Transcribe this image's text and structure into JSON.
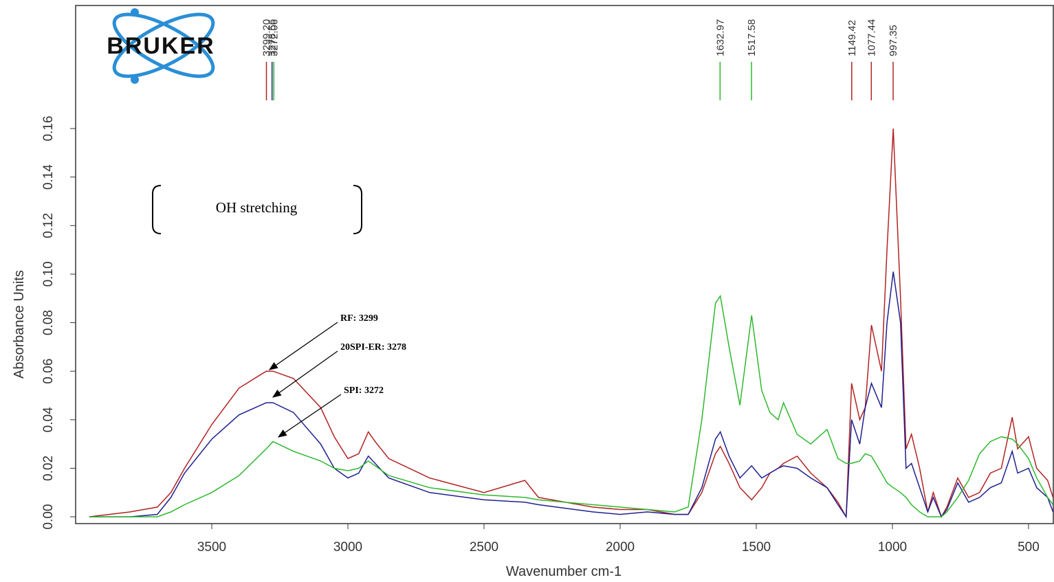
{
  "chart_data": {
    "type": "line",
    "xlabel": "Wavenumber cm-1",
    "ylabel": "Absorbance Units",
    "logo": "BRUKER",
    "xlim": [
      4000,
      409
    ],
    "ylim": [
      -0.0028,
      0.2107
    ],
    "xticks": [
      3500,
      3000,
      2500,
      2000,
      1500,
      1000,
      500
    ],
    "yticks": [
      {
        "value": 0,
        "label": "0.00"
      },
      {
        "value": 0.02,
        "label": "0.02"
      },
      {
        "value": 0.04,
        "label": "0.04"
      },
      {
        "value": 0.06,
        "label": "0.06"
      },
      {
        "value": 0.08,
        "label": "0.08"
      },
      {
        "value": 0.1,
        "label": "0.10"
      },
      {
        "value": 0.12,
        "label": "0.12"
      },
      {
        "value": 0.14,
        "label": "0.14"
      },
      {
        "value": 0.16,
        "label": "0.16"
      }
    ],
    "x": [
      3950,
      3800,
      3700,
      3650,
      3600,
      3500,
      3400,
      3300,
      3275,
      3200,
      3100,
      3050,
      3000,
      2960,
      2925,
      2900,
      2850,
      2700,
      2500,
      2350,
      2300,
      2100,
      2000,
      1900,
      1800,
      1750,
      1700,
      1650,
      1632,
      1600,
      1560,
      1517,
      1480,
      1450,
      1420,
      1400,
      1350,
      1300,
      1240,
      1200,
      1170,
      1150,
      1120,
      1100,
      1077,
      1040,
      1020,
      997,
      970,
      950,
      930,
      900,
      870,
      850,
      820,
      800,
      760,
      720,
      680,
      640,
      600,
      560,
      540,
      500,
      470,
      430,
      410
    ],
    "series": [
      {
        "color": "#b22222",
        "values": [
          0,
          0.002,
          0.004,
          0.01,
          0.02,
          0.038,
          0.053,
          0.06,
          0.06,
          0.057,
          0.045,
          0.033,
          0.024,
          0.026,
          0.035,
          0.031,
          0.024,
          0.016,
          0.01,
          0.015,
          0.008,
          0.004,
          0.003,
          0.003,
          0.001,
          0.001,
          0.01,
          0.026,
          0.029,
          0.022,
          0.012,
          0.007,
          0.012,
          0.018,
          0.02,
          0.022,
          0.025,
          0.018,
          0.012,
          0.006,
          0,
          0.055,
          0.04,
          0.045,
          0.079,
          0.06,
          0.11,
          0.16,
          0.09,
          0.028,
          0.034,
          0.02,
          0.002,
          0.01,
          0,
          0.004,
          0.016,
          0.008,
          0.01,
          0.018,
          0.02,
          0.041,
          0.028,
          0.033,
          0.02,
          0.015,
          0.008
        ]
      },
      {
        "color": "#1f1f8f",
        "values": [
          0,
          0,
          0.001,
          0.008,
          0.018,
          0.032,
          0.042,
          0.047,
          0.047,
          0.043,
          0.03,
          0.02,
          0.016,
          0.018,
          0.025,
          0.022,
          0.016,
          0.01,
          0.007,
          0.006,
          0.005,
          0.002,
          0.001,
          0.002,
          0.001,
          0.001,
          0.012,
          0.032,
          0.035,
          0.025,
          0.016,
          0.021,
          0.016,
          0.018,
          0.02,
          0.021,
          0.02,
          0.016,
          0.012,
          0.005,
          0,
          0.04,
          0.03,
          0.045,
          0.055,
          0.045,
          0.08,
          0.101,
          0.08,
          0.02,
          0.022,
          0.012,
          0.002,
          0.008,
          0,
          0.003,
          0.014,
          0.006,
          0.008,
          0.012,
          0.014,
          0.027,
          0.018,
          0.02,
          0.012,
          0.008,
          0.002
        ]
      },
      {
        "color": "#2db82d",
        "values": [
          0,
          0,
          0,
          0.002,
          0.005,
          0.01,
          0.017,
          0.028,
          0.031,
          0.027,
          0.023,
          0.02,
          0.019,
          0.02,
          0.023,
          0.021,
          0.017,
          0.012,
          0.009,
          0.008,
          0.007,
          0.005,
          0.004,
          0.003,
          0.002,
          0.004,
          0.04,
          0.088,
          0.091,
          0.07,
          0.046,
          0.083,
          0.052,
          0.043,
          0.04,
          0.047,
          0.034,
          0.03,
          0.036,
          0.024,
          0.022,
          0.022,
          0.023,
          0.026,
          0.025,
          0.018,
          0.014,
          0.012,
          0.01,
          0.008,
          0.005,
          0.002,
          0,
          0,
          0,
          0.002,
          0.008,
          0.015,
          0.026,
          0.031,
          0.033,
          0.032,
          0.03,
          0.024,
          0.016,
          0.008,
          0.005
        ]
      }
    ],
    "peaks": [
      {
        "x": {
          "value": 3299.2,
          "label": "3299.20"
        },
        "color": "#b22222"
      },
      {
        "x": {
          "value": 3278.56,
          "label": "3278.56"
        },
        "color": "#1f1f8f"
      },
      {
        "x": {
          "value": 3272.06,
          "label": "3272.06"
        },
        "color": "#2db82d"
      },
      {
        "x": {
          "value": 1632.97,
          "label": "1632.97"
        },
        "color": "#2db82d"
      },
      {
        "x": {
          "value": 1517.58,
          "label": "1517.58"
        },
        "color": "#2db82d"
      },
      {
        "x": {
          "value": 1149.42,
          "label": "1149.42"
        },
        "color": "#b22222"
      },
      {
        "x": {
          "value": 1077.44,
          "label": "1077.44"
        },
        "color": "#b22222"
      },
      {
        "x": {
          "value": 997.35,
          "label": "997.35"
        },
        "color": "#b22222"
      }
    ],
    "annotations": [
      "OH stretching",
      "RF: 3299",
      "20SPI-ER: 3278",
      "SPI: 3272"
    ]
  }
}
